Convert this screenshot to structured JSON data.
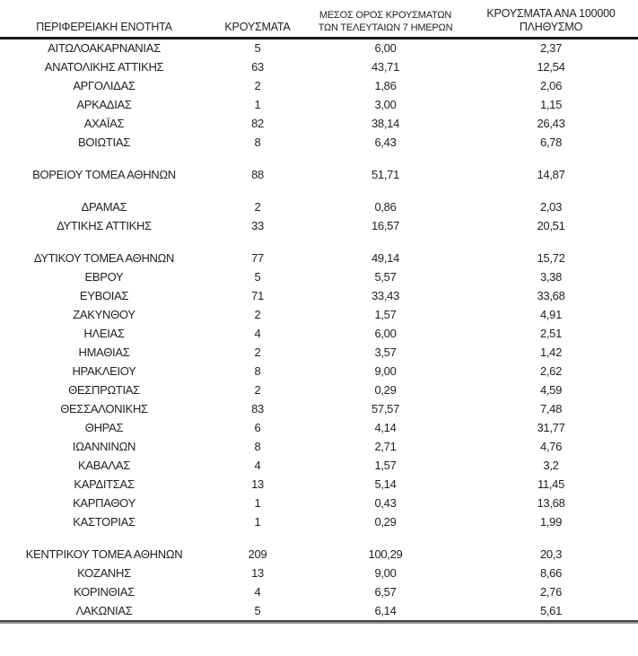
{
  "colors": {
    "text": "#1f1f1f",
    "header_rule": "#1a1a1a",
    "bottom_rule_dark": "#454545",
    "bottom_rule_light": "#8f8f8f",
    "background": "#ffffff"
  },
  "table": {
    "headers": {
      "region": "ΠΕΡΙΦΕΡΕΙΑΚΗ ΕΝΟΤΗΤΑ",
      "cases": "ΚΡΟΥΣΜΑΤΑ",
      "avg7_line1": "ΜΕΣΟΣ ΟΡΟΣ ΚΡΟΥΣΜΑΤΩΝ",
      "avg7_line2": "ΤΩΝ ΤΕΛΕΥΤΑΙΩΝ 7 ΗΜΕΡΩΝ",
      "per100k_line1": "ΚΡΟΥΣΜΑΤΑ ΑΝΑ 100000",
      "per100k_line2": "ΠΛΗΘΥΣΜΟ"
    },
    "rows": [
      {
        "region": "ΑΙΤΩΛΟΑΚΑΡΝΑΝΙΑΣ",
        "cases": "5",
        "avg7": "6,00",
        "per100k": "2,37",
        "gap_before": false
      },
      {
        "region": "ΑΝΑΤΟΛΙΚΗΣ ΑΤΤΙΚΗΣ",
        "cases": "63",
        "avg7": "43,71",
        "per100k": "12,54",
        "gap_before": false
      },
      {
        "region": "ΑΡΓΟΛΙΔΑΣ",
        "cases": "2",
        "avg7": "1,86",
        "per100k": "2,06",
        "gap_before": false
      },
      {
        "region": "ΑΡΚΑΔΙΑΣ",
        "cases": "1",
        "avg7": "3,00",
        "per100k": "1,15",
        "gap_before": false
      },
      {
        "region": "ΑΧΑΪΑΣ",
        "cases": "82",
        "avg7": "38,14",
        "per100k": "26,43",
        "gap_before": false
      },
      {
        "region": "ΒΟΙΩΤΙΑΣ",
        "cases": "8",
        "avg7": "6,43",
        "per100k": "6,78",
        "gap_before": false
      },
      {
        "region": "ΒΟΡΕΙΟΥ ΤΟΜΕΑ ΑΘΗΝΩΝ",
        "cases": "88",
        "avg7": "51,71",
        "per100k": "14,87",
        "gap_before": true
      },
      {
        "region": "ΔΡΑΜΑΣ",
        "cases": "2",
        "avg7": "0,86",
        "per100k": "2,03",
        "gap_before": true
      },
      {
        "region": "ΔΥΤΙΚΗΣ ΑΤΤΙΚΗΣ",
        "cases": "33",
        "avg7": "16,57",
        "per100k": "20,51",
        "gap_before": false
      },
      {
        "region": "ΔΥΤΙΚΟΥ ΤΟΜΕΑ ΑΘΗΝΩΝ",
        "cases": "77",
        "avg7": "49,14",
        "per100k": "15,72",
        "gap_before": true
      },
      {
        "region": "ΕΒΡΟΥ",
        "cases": "5",
        "avg7": "5,57",
        "per100k": "3,38",
        "gap_before": false
      },
      {
        "region": "ΕΥΒΟΙΑΣ",
        "cases": "71",
        "avg7": "33,43",
        "per100k": "33,68",
        "gap_before": false
      },
      {
        "region": "ΖΑΚΥΝΘΟΥ",
        "cases": "2",
        "avg7": "1,57",
        "per100k": "4,91",
        "gap_before": false
      },
      {
        "region": "ΗΛΕΙΑΣ",
        "cases": "4",
        "avg7": "6,00",
        "per100k": "2,51",
        "gap_before": false
      },
      {
        "region": "ΗΜΑΘΙΑΣ",
        "cases": "2",
        "avg7": "3,57",
        "per100k": "1,42",
        "gap_before": false
      },
      {
        "region": "ΗΡΑΚΛΕΙΟΥ",
        "cases": "8",
        "avg7": "9,00",
        "per100k": "2,62",
        "gap_before": false
      },
      {
        "region": "ΘΕΣΠΡΩΤΙΑΣ",
        "cases": "2",
        "avg7": "0,29",
        "per100k": "4,59",
        "gap_before": false
      },
      {
        "region": "ΘΕΣΣΑΛΟΝΙΚΗΣ",
        "cases": "83",
        "avg7": "57,57",
        "per100k": "7,48",
        "gap_before": false
      },
      {
        "region": "ΘΗΡΑΣ",
        "cases": "6",
        "avg7": "4,14",
        "per100k": "31,77",
        "gap_before": false
      },
      {
        "region": "ΙΩΑΝΝΙΝΩΝ",
        "cases": "8",
        "avg7": "2,71",
        "per100k": "4,76",
        "gap_before": false
      },
      {
        "region": "ΚΑΒΑΛΑΣ",
        "cases": "4",
        "avg7": "1,57",
        "per100k": "3,2",
        "gap_before": false
      },
      {
        "region": "ΚΑΡΔΙΤΣΑΣ",
        "cases": "13",
        "avg7": "5,14",
        "per100k": "11,45",
        "gap_before": false
      },
      {
        "region": "ΚΑΡΠΑΘΟΥ",
        "cases": "1",
        "avg7": "0,43",
        "per100k": "13,68",
        "gap_before": false
      },
      {
        "region": "ΚΑΣΤΟΡΙΑΣ",
        "cases": "1",
        "avg7": "0,29",
        "per100k": "1,99",
        "gap_before": false
      },
      {
        "region": "ΚΕΝΤΡΙΚΟΥ ΤΟΜΕΑ ΑΘΗΝΩΝ",
        "cases": "209",
        "avg7": "100,29",
        "per100k": "20,3",
        "gap_before": true
      },
      {
        "region": "ΚΟΖΑΝΗΣ",
        "cases": "13",
        "avg7": "9,00",
        "per100k": "8,66",
        "gap_before": false
      },
      {
        "region": "ΚΟΡΙΝΘΙΑΣ",
        "cases": "4",
        "avg7": "6,57",
        "per100k": "2,76",
        "gap_before": false
      },
      {
        "region": "ΛΑΚΩΝΙΑΣ",
        "cases": "5",
        "avg7": "6,14",
        "per100k": "5,61",
        "gap_before": false
      }
    ]
  }
}
